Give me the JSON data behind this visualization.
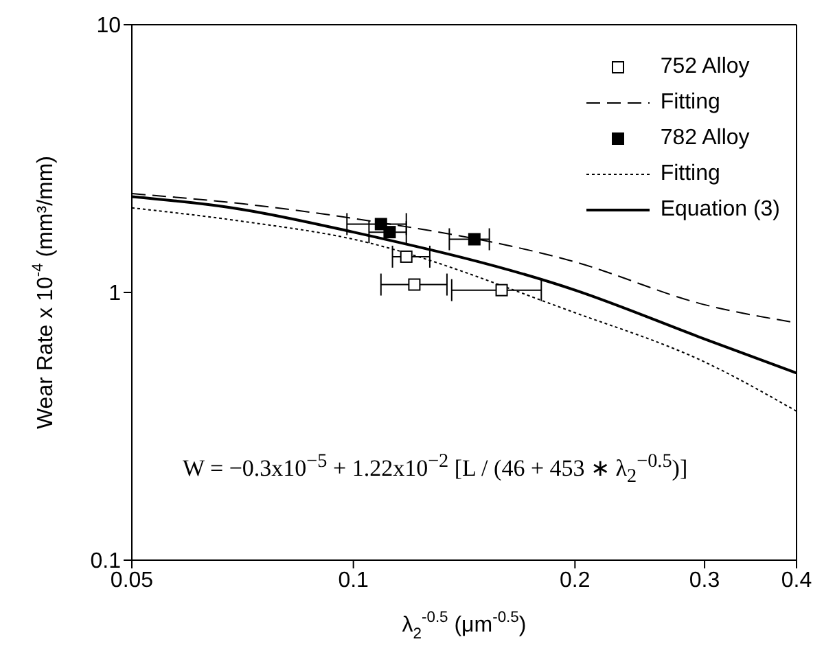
{
  "chart_data": {
    "type": "scatter",
    "xlabel": "λ$_{2}$$^{-0.5}$  (μm$^{-0.5}$)",
    "ylabel": "Wear Rate x 10$^{-4}$ (mm³/mm)",
    "log": "xy",
    "xlim": [
      0.05,
      0.4
    ],
    "xticks": [
      0.05,
      0.1,
      0.2,
      0.3,
      0.4
    ],
    "ylim": [
      0.1,
      10
    ],
    "yticks": [
      0.1,
      1,
      10
    ],
    "legend": "top right",
    "series": [
      {
        "name": "752 Alloy",
        "marker": "square",
        "color": "#ffffff",
        "x": [
          0.118,
          0.121,
          0.159
        ],
        "values": [
          1.36,
          1.07,
          1.02
        ],
        "xerrors": [
          [
            0.113,
            0.127
          ],
          [
            0.109,
            0.134
          ],
          [
            0.136,
            0.18
          ]
        ]
      },
      {
        "name": "Fitting",
        "type": "line",
        "marker": "none",
        "line_style": "dashed",
        "color": "#000000",
        "x": [
          0.05,
          0.07,
          0.1,
          0.2,
          0.3,
          0.4
        ],
        "values": [
          2.34,
          2.15,
          1.89,
          1.3,
          0.9,
          0.77
        ]
      },
      {
        "name": "782 Alloy",
        "marker": "square",
        "color": "#000000",
        "x": [
          0.109,
          0.112,
          0.146
        ],
        "values": [
          1.8,
          1.68,
          1.58
        ],
        "xerrors": [
          [
            0.098,
            0.118
          ],
          [
            0.105,
            0.118
          ],
          [
            0.135,
            0.153
          ]
        ]
      },
      {
        "name": "Fitting",
        "type": "line",
        "marker": "none",
        "line_style": "dotted",
        "color": "#000000",
        "x": [
          0.05,
          0.07,
          0.1,
          0.2,
          0.3,
          0.4
        ],
        "values": [
          2.07,
          1.85,
          1.58,
          0.84,
          0.55,
          0.36
        ]
      },
      {
        "name": "Equation (3)",
        "type": "line",
        "marker": "none",
        "line_style": "solid",
        "color": "#000000",
        "x": [
          0.05,
          0.07,
          0.1,
          0.2,
          0.3,
          0.4
        ],
        "values": [
          2.28,
          2.05,
          1.68,
          1.02,
          0.67,
          0.5
        ]
      }
    ],
    "annotations": [
      "W = −0.3x10$^{−5}$ + 1.22x10$^{−2}$ [L / (46 + 453 ∗ λ$_{2}$$^{−0.5}$)]"
    ]
  }
}
